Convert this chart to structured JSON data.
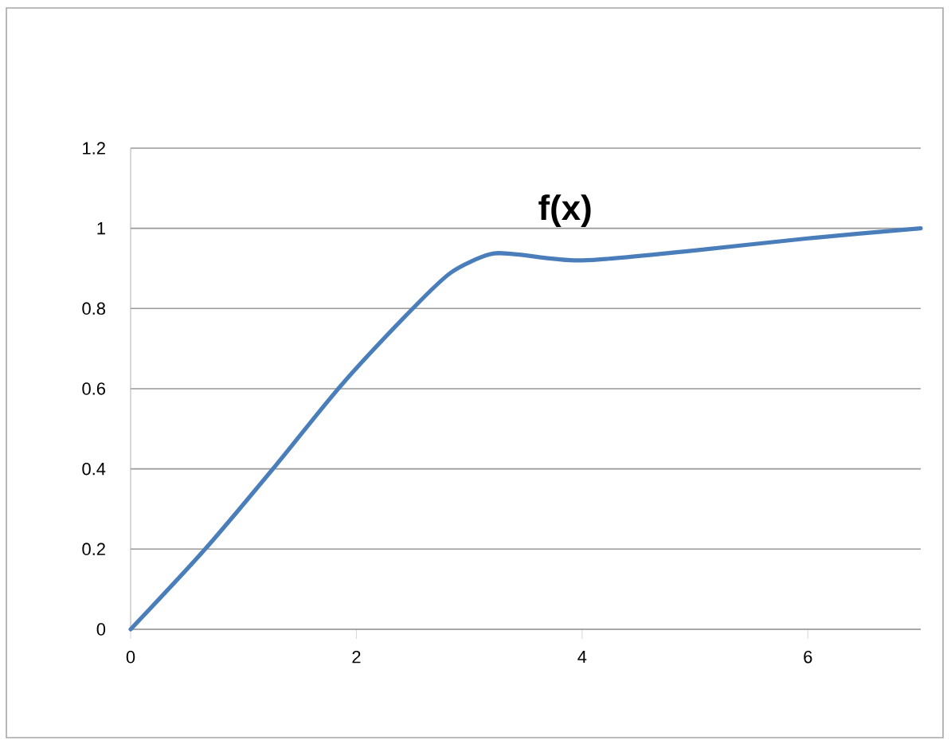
{
  "chart_data": {
    "type": "line",
    "title": "f(x)",
    "series": [
      {
        "color": "#4a7ebb",
        "x": [
          0,
          0.66,
          1.29,
          1.87,
          2.5,
          2.84,
          3.18,
          3.42,
          4,
          5,
          6,
          7
        ],
        "values": [
          0,
          0.2,
          0.41,
          0.61,
          0.8,
          0.89,
          0.935,
          0.935,
          0.92,
          0.945,
          0.975,
          1
        ]
      }
    ],
    "xlim": [
      0,
      7
    ],
    "xticks": [
      0,
      2,
      4,
      6
    ],
    "ylim": [
      0,
      1.2
    ],
    "yticks": [
      0,
      0.2,
      0.4,
      0.6,
      0.8,
      1,
      1.2
    ],
    "grid": "y",
    "marker": "none",
    "line_style": "solid"
  }
}
